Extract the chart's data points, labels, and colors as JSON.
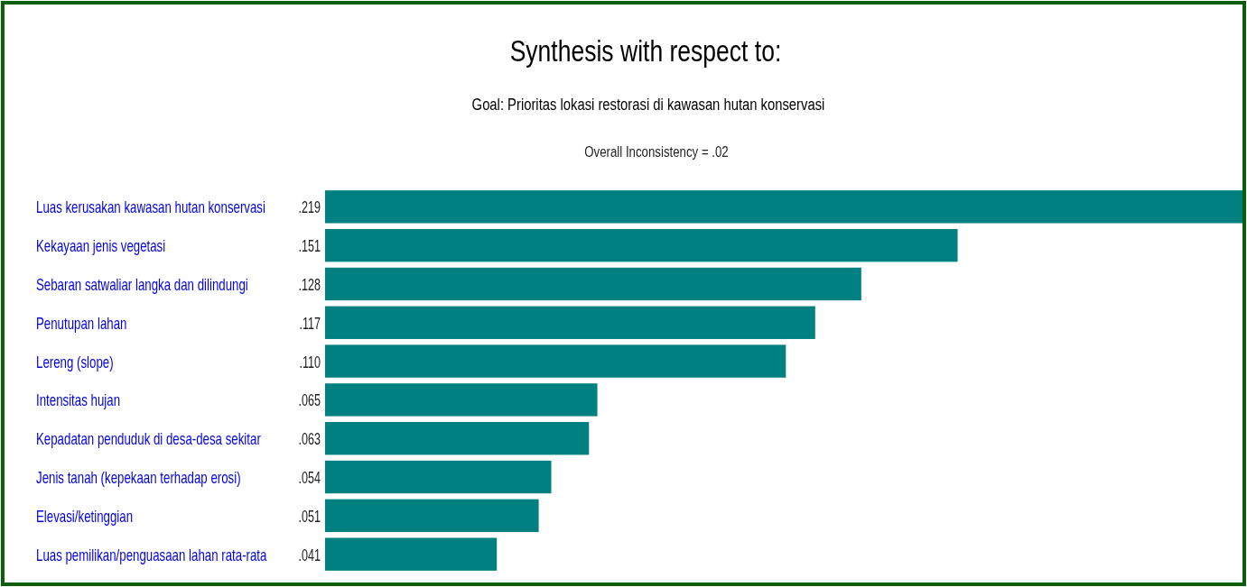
{
  "chart_data": {
    "type": "bar",
    "orientation": "horizontal",
    "title": "Synthesis with respect to:",
    "subtitle": "Goal: Prioritas lokasi restorasi di kawasan hutan konservasi",
    "annotations": [
      "Overall Inconsistency = .02"
    ],
    "categories": [
      "Luas kerusakan kawasan hutan konservasi",
      "Kekayaan jenis vegetasi",
      "Sebaran satwaliar langka dan dilindungi",
      "Penutupan lahan",
      "Lereng (slope)",
      "Intensitas hujan",
      "Kepadatan penduduk di desa-desa sekitar",
      "Jenis tanah (kepekaan terhadap erosi)",
      "Elevasi/ketinggian",
      "Luas pemilikan/penguasaan lahan rata-rata"
    ],
    "values": [
      0.219,
      0.151,
      0.128,
      0.117,
      0.11,
      0.065,
      0.063,
      0.054,
      0.051,
      0.041
    ],
    "value_labels": [
      ".219",
      ".151",
      ".128",
      ".117",
      ".110",
      ".065",
      ".063",
      ".054",
      ".051",
      ".041"
    ],
    "color": "#008080"
  }
}
